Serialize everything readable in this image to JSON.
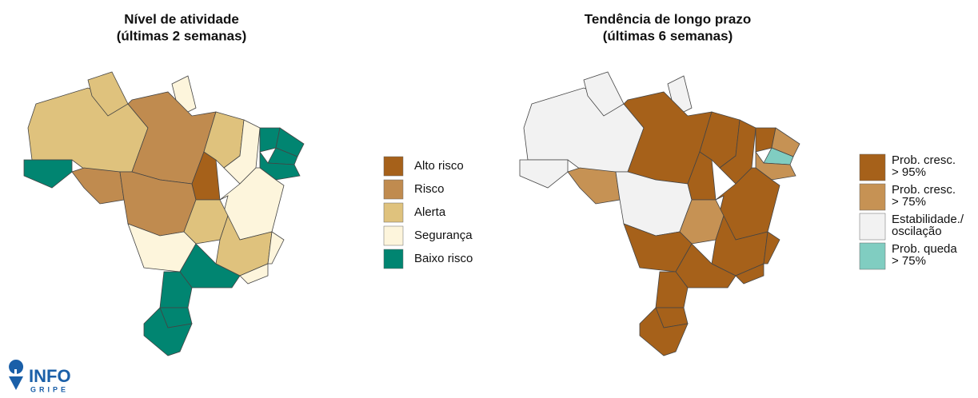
{
  "maps": [
    {
      "title_lines": [
        "Nível de atividade",
        "(últimas 2 semanas)"
      ],
      "legend": [
        {
          "lines": [
            "Alto risco"
          ],
          "color": "#a6611a"
        },
        {
          "lines": [
            "Risco"
          ],
          "color": "#c08b4f"
        },
        {
          "lines": [
            "Alerta"
          ],
          "color": "#dfc27d"
        },
        {
          "lines": [
            "Segurança"
          ],
          "color": "#fdf5dc"
        },
        {
          "lines": [
            "Baixo risco"
          ],
          "color": "#018571"
        }
      ]
    },
    {
      "title_lines": [
        "Tendência de longo prazo",
        "(últimas 6 semanas)"
      ],
      "legend": [
        {
          "lines": [
            "Prob. cresc.",
            "> 95%"
          ],
          "color": "#a6611a"
        },
        {
          "lines": [
            "Prob. cresc.",
            "> 75%"
          ],
          "color": "#c69254"
        },
        {
          "lines": [
            "Estabilidade./",
            "oscilação"
          ],
          "color": "#f2f2f2"
        },
        {
          "lines": [
            "Prob. queda",
            "> 75%"
          ],
          "color": "#80cdc1"
        }
      ]
    }
  ],
  "logo": {
    "main": "INFO",
    "sub": "GRIPE"
  }
}
